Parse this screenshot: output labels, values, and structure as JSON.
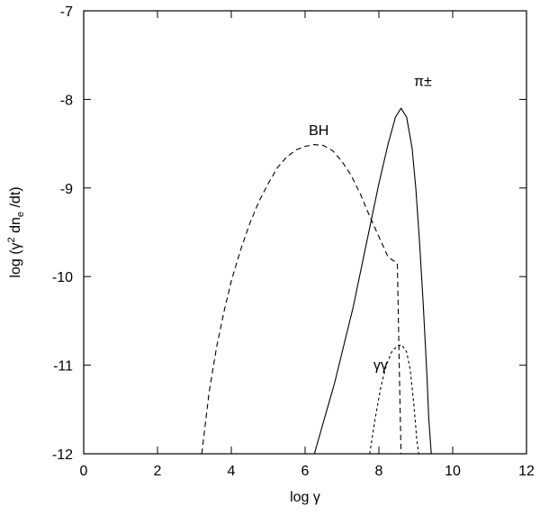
{
  "chart_data": {
    "type": "line",
    "title": "",
    "xlabel": "log γ",
    "ylabel_parts": {
      "pre": "log (γ",
      "sup": "2",
      "mid": " dn",
      "sub": "e",
      "post": " /dt)"
    },
    "xlim": [
      0,
      12
    ],
    "ylim": [
      -12,
      -7
    ],
    "xticks": [
      0,
      2,
      4,
      6,
      8,
      10,
      12
    ],
    "yticks": [
      -12,
      -11,
      -10,
      -9,
      -8,
      -7
    ],
    "grid": false,
    "legend": "none",
    "series": [
      {
        "name": "π±",
        "style": "solid",
        "x": [
          6.25,
          6.8,
          7.3,
          7.7,
          8.0,
          8.25,
          8.45,
          8.6,
          8.75,
          8.9,
          9.0,
          9.1,
          9.2,
          9.3,
          9.35,
          9.42
        ],
        "y": [
          -12.0,
          -11.2,
          -10.35,
          -9.55,
          -8.95,
          -8.5,
          -8.2,
          -8.1,
          -8.2,
          -8.55,
          -9.0,
          -9.6,
          -10.3,
          -11.1,
          -11.6,
          -12.0
        ]
      },
      {
        "name": "BH",
        "style": "dashed",
        "x": [
          3.2,
          3.4,
          3.6,
          3.8,
          4.0,
          4.25,
          4.5,
          4.75,
          5.0,
          5.25,
          5.5,
          5.75,
          6.0,
          6.25,
          6.5,
          6.75,
          7.0,
          7.25,
          7.5,
          7.75,
          8.0,
          8.25,
          8.5,
          8.55,
          8.6
        ],
        "y": [
          -12.0,
          -11.3,
          -10.8,
          -10.4,
          -10.05,
          -9.7,
          -9.4,
          -9.15,
          -8.95,
          -8.77,
          -8.65,
          -8.57,
          -8.53,
          -8.51,
          -8.52,
          -8.58,
          -8.7,
          -8.86,
          -9.07,
          -9.32,
          -9.55,
          -9.78,
          -9.85,
          -11.0,
          -12.0
        ]
      },
      {
        "name": "γγ",
        "style": "dotted",
        "x": [
          7.75,
          7.9,
          8.05,
          8.2,
          8.35,
          8.5,
          8.62,
          8.75,
          8.85,
          8.95,
          9.03,
          9.08
        ],
        "y": [
          -12.0,
          -11.6,
          -11.25,
          -11.0,
          -10.85,
          -10.78,
          -10.77,
          -10.85,
          -11.05,
          -11.45,
          -11.85,
          -12.0
        ]
      }
    ],
    "annotations": [
      {
        "text": "π±",
        "x": 8.95,
        "y": -7.85
      },
      {
        "text": "BH",
        "x": 6.1,
        "y": -8.4
      },
      {
        "text": "γγ",
        "x": 7.85,
        "y": -11.05
      }
    ]
  }
}
